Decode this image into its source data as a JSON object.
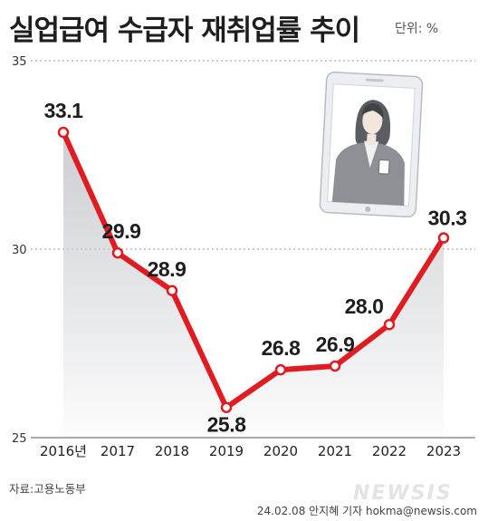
{
  "title": "실업급여 수급자 재취업률 추이",
  "unit": "단위: %",
  "source": "자료:고용노동부",
  "credit": "24.02.08 안지혜 기자 hokma@newsis.com",
  "watermark": "NEWSIS",
  "colors": {
    "line": "#e01b22",
    "area": "#c9cbcf",
    "grid": "#9b9b9b",
    "text": "#222222"
  },
  "chart_data": {
    "type": "line",
    "title": "실업급여 수급자 재취업률 추이",
    "unit": "%",
    "categories": [
      "2016년",
      "2017",
      "2018",
      "2019",
      "2020",
      "2021",
      "2022",
      "2023"
    ],
    "series": [
      {
        "values": [
          33.1,
          29.9,
          28.9,
          25.8,
          26.8,
          26.9,
          28.0,
          30.3
        ]
      }
    ],
    "y_ticks": [
      25,
      30,
      35
    ],
    "ylim": [
      25,
      35
    ],
    "grid": true,
    "area_fill": true,
    "labels": [
      "33.1",
      "29.9",
      "28.9",
      "25.8",
      "26.8",
      "26.9",
      "28.0",
      "30.3"
    ]
  }
}
